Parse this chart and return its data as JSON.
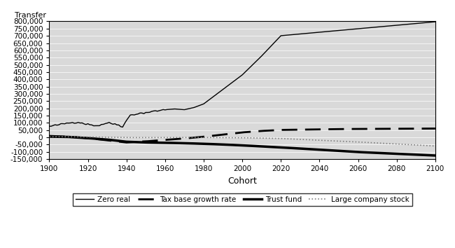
{
  "title": "",
  "ylabel": "Transfer",
  "xlabel": "Cohort",
  "xlim": [
    1900,
    2100
  ],
  "ylim": [
    -150000,
    800000
  ],
  "yticks": [
    -150000,
    -100000,
    -50000,
    0,
    50000,
    100000,
    150000,
    200000,
    250000,
    300000,
    350000,
    400000,
    450000,
    500000,
    550000,
    600000,
    650000,
    700000,
    750000,
    800000
  ],
  "xticks": [
    1900,
    1920,
    1940,
    1960,
    1980,
    2000,
    2020,
    2040,
    2060,
    2080,
    2100
  ],
  "background_color": "#d9d9d9",
  "fig_background": "#ffffff",
  "series": {
    "zero_real": {
      "label": "Zero real",
      "color": "#000000",
      "linewidth": 1.0,
      "linestyle": "solid"
    },
    "tax_base": {
      "label": "Tax base growth rate",
      "color": "#000000",
      "linewidth": 2.0,
      "linestyle": "dashed"
    },
    "trust_fund": {
      "label": "Trust fund",
      "color": "#000000",
      "linewidth": 2.5,
      "linestyle": "solid"
    },
    "large_company": {
      "label": "Large company stock",
      "color": "#808080",
      "linewidth": 1.2,
      "linestyle": "dotted"
    }
  }
}
